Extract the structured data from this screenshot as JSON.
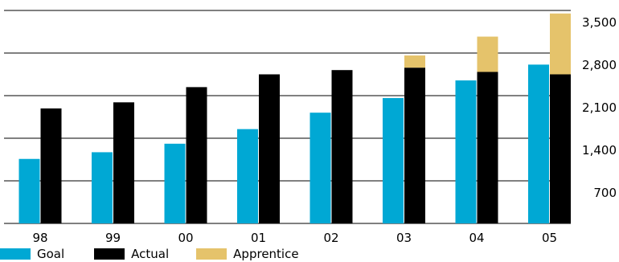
{
  "chart_data": {
    "type": "bar",
    "categories": [
      "98",
      "99",
      "00",
      "01",
      "02",
      "03",
      "04",
      "05"
    ],
    "series": [
      {
        "name": "Goal",
        "values": [
          1060,
          1170,
          1310,
          1550,
          1820,
          2060,
          2350,
          2610
        ]
      },
      {
        "name": "Actual",
        "values": [
          1890,
          1990,
          2240,
          2450,
          2520,
          2560,
          2490,
          2450
        ]
      },
      {
        "name": "Apprentice",
        "values": [
          0,
          0,
          0,
          0,
          0,
          200,
          580,
          1000
        ]
      }
    ],
    "stacked_series": [
      "Actual",
      "Apprentice"
    ],
    "ylim": [
      0,
      3500
    ],
    "yticks": [
      "700",
      "1,400",
      "2,100",
      "2,800",
      "3,500"
    ],
    "ytick_values": [
      700,
      1400,
      2100,
      2800,
      3500
    ],
    "y_axis_position": "right",
    "grid": true,
    "legend_position": "bottom-left",
    "colors": {
      "Goal": "#00a8d4",
      "Actual": "#000000",
      "Apprentice": "#e5c36b",
      "grid": "#000000"
    }
  }
}
